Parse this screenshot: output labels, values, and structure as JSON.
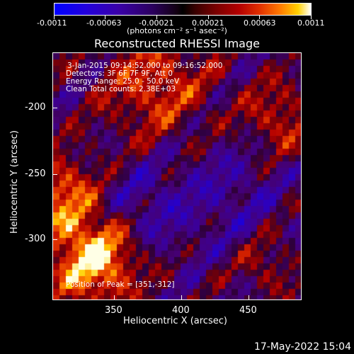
{
  "colorbar": {
    "ticks": [
      "-0.0011",
      "-0.00063",
      "-0.00021",
      "0.00021",
      "0.00063",
      "0.0011"
    ],
    "units": "(photons cm⁻² s⁻¹ asec⁻²)"
  },
  "title": "Reconstructed RHESSI Image",
  "info_lines": [
    "3-Jan-2015 09:14:52.000 to 09:16:52.000",
    "Detectors: 3F 6F 7F 9F, Att 0",
    "Energy Range: 25.0 - 50.0 keV",
    "Clean    Total counts: 2.38E+03"
  ],
  "peak_text": "Position of Peak = [351,-312]",
  "xaxis": {
    "label": "Heliocentric X (arcsec)",
    "ticks": [
      "350",
      "400",
      "450"
    ]
  },
  "yaxis": {
    "label": "Heliocentric Y (arcsec)",
    "ticks": [
      "-200",
      "-250",
      "-300"
    ]
  },
  "timestamp": "17-May-2022 15:04",
  "colors": {
    "background": "#000000",
    "low": "#2200dd",
    "mid": "#3a0060",
    "high": "#ffd000"
  }
}
